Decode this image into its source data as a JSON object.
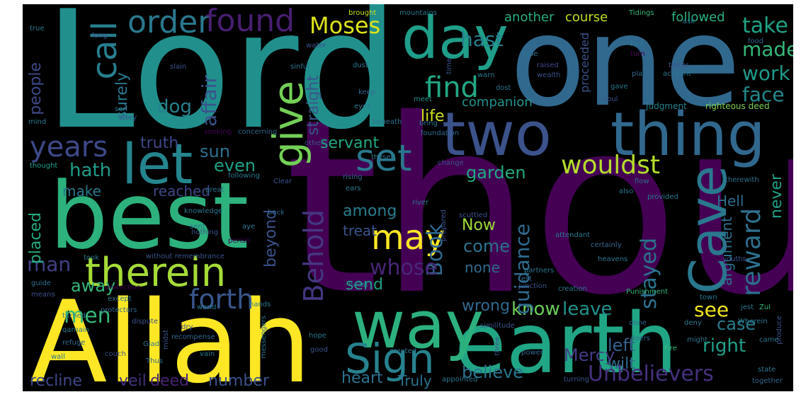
{
  "title": "",
  "words": [
    {
      "text": "thou",
      "color": "#440154"
    },
    {
      "text": "Lord",
      "color": "#21908d"
    },
    {
      "text": "one",
      "color": "#31688e"
    },
    {
      "text": "Allah",
      "color": "#fde725"
    },
    {
      "text": "earth",
      "color": "#21a685"
    },
    {
      "text": "best",
      "color": "#2db27d"
    },
    {
      "text": "two",
      "color": "#3b528b"
    },
    {
      "text": "thing",
      "color": "#31688e"
    },
    {
      "text": "way",
      "color": "#2cb17e"
    },
    {
      "text": "day",
      "color": "#1f9e89"
    },
    {
      "text": "let",
      "color": "#25858e"
    },
    {
      "text": "therein",
      "color": "#a5db36"
    },
    {
      "text": "Cave",
      "color": "#2a788e"
    },
    {
      "text": "Sign",
      "color": "#26828e"
    },
    {
      "text": "give",
      "color": "#73d056"
    },
    {
      "text": "call",
      "color": "#277f8e"
    },
    {
      "text": "order",
      "color": "#2a788e"
    },
    {
      "text": "found",
      "color": "#481f70"
    },
    {
      "text": "forth",
      "color": "#39568c"
    },
    {
      "text": "Behold",
      "color": "#453781"
    },
    {
      "text": "may",
      "color": "#fde725"
    },
    {
      "text": "set",
      "color": "#2a788e"
    },
    {
      "text": "reward",
      "color": "#2d708e"
    },
    {
      "text": "wouldst",
      "color": "#b5de2b"
    },
    {
      "text": "years",
      "color": "#3e4989"
    },
    {
      "text": "Moses",
      "color": "#dde318"
    },
    {
      "text": "find",
      "color": "#22a884"
    },
    {
      "text": "Unbelievers",
      "color": "#46307e"
    },
    {
      "text": "hast",
      "color": "#26818e"
    },
    {
      "text": "take",
      "color": "#20a386"
    },
    {
      "text": "made",
      "color": "#35b779"
    },
    {
      "text": "work",
      "color": "#1f9a8a"
    },
    {
      "text": "face",
      "color": "#238a8d"
    },
    {
      "text": "stayed",
      "color": "#2c728e"
    },
    {
      "text": "Book",
      "color": "#31688e"
    },
    {
      "text": "whose",
      "color": "#482677"
    },
    {
      "text": "know",
      "color": "#6ccd5a"
    },
    {
      "text": "leave",
      "color": "#21918c"
    },
    {
      "text": "see",
      "color": "#f1e51d"
    },
    {
      "text": "Mercy",
      "color": "#433e85"
    },
    {
      "text": "right",
      "color": "#1fa088"
    },
    {
      "text": "believe",
      "color": "#2b758e"
    },
    {
      "text": "wrong",
      "color": "#31688e"
    },
    {
      "text": "case",
      "color": "#287d8e"
    },
    {
      "text": "left",
      "color": "#33638d"
    },
    {
      "text": "wilt",
      "color": "#2f6c8e"
    },
    {
      "text": "men",
      "color": "#35b779"
    },
    {
      "text": "man",
      "color": "#424086"
    },
    {
      "text": "dog",
      "color": "#26828e"
    },
    {
      "text": "affair",
      "color": "#3b528b"
    },
    {
      "text": "sun",
      "color": "#2c728e"
    },
    {
      "text": "even",
      "color": "#1fa187"
    },
    {
      "text": "hath",
      "color": "#1e9c89"
    },
    {
      "text": "garden",
      "color": "#22a884"
    },
    {
      "text": "among",
      "color": "#287c8e"
    },
    {
      "text": "come",
      "color": "#2c728e"
    },
    {
      "text": "guidance",
      "color": "#2f6c8e"
    },
    {
      "text": "send",
      "color": "#1fa088"
    },
    {
      "text": "away",
      "color": "#35b779"
    },
    {
      "text": "beyond",
      "color": "#3b528b"
    },
    {
      "text": "placed",
      "color": "#25ac82"
    },
    {
      "text": "people",
      "color": "#3e4989"
    },
    {
      "text": "surely",
      "color": "#2a788e"
    },
    {
      "text": "straight",
      "color": "#39568c"
    },
    {
      "text": "Now",
      "color": "#a0da39"
    },
    {
      "text": "none",
      "color": "#31688e"
    },
    {
      "text": "argument",
      "color": "#2d708e"
    },
    {
      "text": "never",
      "color": "#1fa088"
    },
    {
      "text": "Hell",
      "color": "#2e6f8e"
    },
    {
      "text": "life",
      "color": "#d0e11c"
    },
    {
      "text": "servant",
      "color": "#22a884"
    },
    {
      "text": "truth",
      "color": "#3f4788"
    },
    {
      "text": "make",
      "color": "#2a788e"
    },
    {
      "text": "reached",
      "color": "#3f4788"
    },
    {
      "text": "treat",
      "color": "#3b528b"
    },
    {
      "text": "heart",
      "color": "#2c728e"
    },
    {
      "text": "number",
      "color": "#3b528b"
    },
    {
      "text": "deed",
      "color": "#482475"
    },
    {
      "text": "veil",
      "color": "#46337f"
    },
    {
      "text": "recline",
      "color": "#3f4788"
    },
    {
      "text": "Truly",
      "color": "#2c728e"
    },
    {
      "text": "companion",
      "color": "#21918c"
    },
    {
      "text": "course",
      "color": "#bddf26"
    },
    {
      "text": "another",
      "color": "#28ae80"
    },
    {
      "text": "followed",
      "color": "#29af7f"
    },
    {
      "text": "proceeded",
      "color": "#3b528b"
    },
    {
      "text": "righteous deed",
      "color": "#7ad151"
    },
    {
      "text": "Judgment",
      "color": "#26828e"
    },
    {
      "text": "brought",
      "color": "#c8e020"
    },
    {
      "text": "mountains",
      "color": "#2a788e"
    },
    {
      "text": "Tidings",
      "color": "#35b779"
    },
    {
      "text": "water",
      "color": "#3b528b"
    },
    {
      "text": "sinful",
      "color": "#2a788e"
    },
    {
      "text": "Woe",
      "color": "#2c728e"
    },
    {
      "text": "raised",
      "color": "#3e4989"
    },
    {
      "text": "wealth",
      "color": "#3b528b"
    },
    {
      "text": "warn",
      "color": "#2a788e"
    },
    {
      "text": "dost",
      "color": "#2c728e"
    },
    {
      "text": "keep",
      "color": "#31688e"
    },
    {
      "text": "eyes",
      "color": "#2a788e"
    },
    {
      "text": "meet",
      "color": "#21918c"
    },
    {
      "text": "bring",
      "color": "#2a788e"
    },
    {
      "text": "foundation",
      "color": "#31688e"
    },
    {
      "text": "slain",
      "color": "#3b528b"
    },
    {
      "text": "dust",
      "color": "#2a788e"
    },
    {
      "text": "time",
      "color": "#3b528b"
    },
    {
      "text": "son",
      "color": "#2a788e"
    },
    {
      "text": "story",
      "color": "#3b528b"
    },
    {
      "text": "mind",
      "color": "#2a788e"
    },
    {
      "text": "beneath",
      "color": "#2c728e"
    },
    {
      "text": "seeking",
      "color": "#440154"
    },
    {
      "text": "concerning",
      "color": "#31688e"
    },
    {
      "text": "others",
      "color": "#3b528b"
    },
    {
      "text": "thyself",
      "color": "#2a788e"
    },
    {
      "text": "thought",
      "color": "#1f9e89"
    },
    {
      "text": "following",
      "color": "#2a788e"
    },
    {
      "text": "Clear",
      "color": "#3b528b"
    },
    {
      "text": "rising",
      "color": "#31688e"
    },
    {
      "text": "ears",
      "color": "#2a788e"
    },
    {
      "text": "great",
      "color": "#2c728e"
    },
    {
      "text": "knowledge",
      "color": "#2a788e"
    },
    {
      "text": "change",
      "color": "#3b528b"
    },
    {
      "text": "river",
      "color": "#2a788e"
    },
    {
      "text": "flow",
      "color": "#31688e"
    },
    {
      "text": "also",
      "color": "#2a788e"
    },
    {
      "text": "therewith",
      "color": "#2c728e"
    },
    {
      "text": "provided",
      "color": "#2a788e"
    },
    {
      "text": "prepared",
      "color": "#3b528b"
    },
    {
      "text": "sent",
      "color": "#2a788e"
    },
    {
      "text": "back",
      "color": "#31688e"
    },
    {
      "text": "aye",
      "color": "#2a788e"
    },
    {
      "text": "nothing",
      "color": "#3b528b"
    },
    {
      "text": "perish",
      "color": "#440154"
    },
    {
      "text": "without remembrance",
      "color": "#3b528b"
    },
    {
      "text": "took",
      "color": "#2a788e"
    },
    {
      "text": "scuttled",
      "color": "#3b528b"
    },
    {
      "text": "attendant",
      "color": "#2a788e"
    },
    {
      "text": "certainly",
      "color": "#31688e"
    },
    {
      "text": "heavens",
      "color": "#2a788e"
    },
    {
      "text": "youths",
      "color": "#3b528b"
    },
    {
      "text": "partners",
      "color": "#2a788e"
    },
    {
      "text": "test",
      "color": "#31688e"
    },
    {
      "text": "hadst",
      "color": "#2a788e"
    },
    {
      "text": "junction",
      "color": "#3b528b"
    },
    {
      "text": "creation",
      "color": "#2a788e"
    },
    {
      "text": "Punishment",
      "color": "#35b779"
    },
    {
      "text": "town",
      "color": "#2a788e"
    },
    {
      "text": "guide",
      "color": "#2c728e"
    },
    {
      "text": "protection",
      "color": "#440154"
    },
    {
      "text": "means",
      "color": "#3b528b"
    },
    {
      "text": "except",
      "color": "#2a788e"
    },
    {
      "text": "protectors",
      "color": "#31688e"
    },
    {
      "text": "turned",
      "color": "#2a788e"
    },
    {
      "text": "dispute",
      "color": "#3b528b"
    },
    {
      "text": "qarnain",
      "color": "#2a788e"
    },
    {
      "text": "refuge",
      "color": "#31688e"
    },
    {
      "text": "world",
      "color": "#2a788e"
    },
    {
      "text": "dry",
      "color": "#3b528b"
    },
    {
      "text": "recompense",
      "color": "#31688e"
    },
    {
      "text": "hands",
      "color": "#2a788e"
    },
    {
      "text": "similitude",
      "color": "#3b528b"
    },
    {
      "text": "jest",
      "color": "#2a788e"
    },
    {
      "text": "Zul",
      "color": "#35b779"
    },
    {
      "text": "Glad",
      "color": "#2a788e"
    },
    {
      "text": "midst",
      "color": "#3b528b"
    },
    {
      "text": "messengers",
      "color": "#2c728e"
    },
    {
      "text": "hope",
      "color": "#2a788e"
    },
    {
      "text": "three",
      "color": "#3b528b"
    },
    {
      "text": "deny",
      "color": "#2a788e"
    },
    {
      "text": "done",
      "color": "#31688e"
    },
    {
      "text": "Wherein",
      "color": "#2a788e"
    },
    {
      "text": "produce",
      "color": "#3b528b"
    },
    {
      "text": "might",
      "color": "#2a788e"
    },
    {
      "text": "doers",
      "color": "#31688e"
    },
    {
      "text": "Fire",
      "color": "#35b779"
    },
    {
      "text": "came",
      "color": "#2a788e"
    },
    {
      "text": "couch",
      "color": "#3b528b"
    },
    {
      "text": "wall",
      "color": "#2a788e"
    },
    {
      "text": "Thus",
      "color": "#31688e"
    },
    {
      "text": "vain",
      "color": "#2a788e"
    },
    {
      "text": "good",
      "color": "#3b528b"
    },
    {
      "text": "created",
      "color": "#2a788e"
    },
    {
      "text": "power",
      "color": "#31688e"
    },
    {
      "text": "appointed",
      "color": "#2a788e"
    },
    {
      "text": "turning",
      "color": "#3b528b"
    },
    {
      "text": "state",
      "color": "#2a788e"
    },
    {
      "text": "together",
      "color": "#31688e"
    },
    {
      "text": "true",
      "color": "#2a788e"
    },
    {
      "text": "long",
      "color": "#3b528b"
    },
    {
      "text": "ask",
      "color": "#2a788e"
    },
    {
      "text": "food",
      "color": "#31688e"
    },
    {
      "text": "fact",
      "color": "#2a788e"
    },
    {
      "text": "turn",
      "color": "#440154"
    },
    {
      "text": "terror",
      "color": "#3b528b"
    },
    {
      "text": "account",
      "color": "#2a788e"
    },
    {
      "text": "place",
      "color": "#31688e"
    },
    {
      "text": "gave",
      "color": "#2a788e"
    },
    {
      "text": "soul",
      "color": "#3b528b"
    }
  ]
}
